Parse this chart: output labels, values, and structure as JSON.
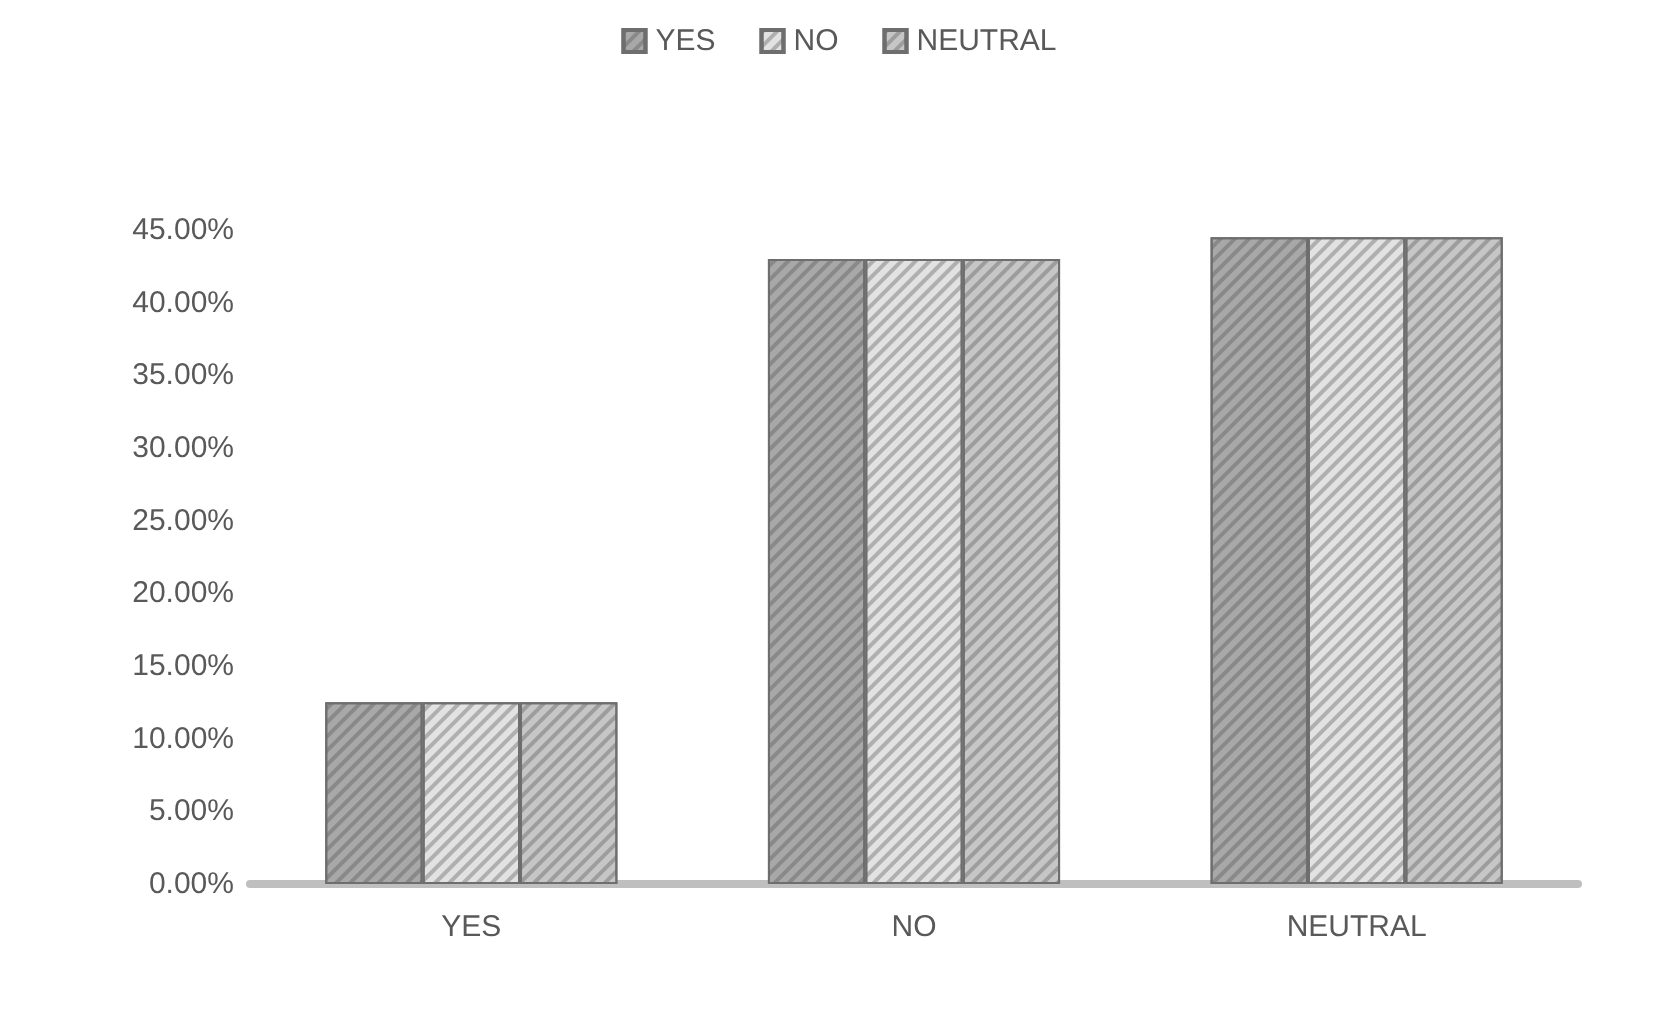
{
  "chart_data": {
    "type": "bar",
    "categories": [
      "YES",
      "NO",
      "NEUTRAL"
    ],
    "series": [
      {
        "name": "YES",
        "color": "#a8a8a8",
        "values": [
          12.5,
          43,
          44.5
        ]
      },
      {
        "name": "NO",
        "color": "#e2e2e2",
        "values": [
          12.5,
          43,
          44.5
        ]
      },
      {
        "name": "NEUTRAL",
        "color": "#c6c6c6",
        "values": [
          12.5,
          43,
          44.5
        ]
      }
    ],
    "ylim": [
      0,
      45
    ],
    "yticks": [
      {
        "value": 0,
        "label": "0.00%"
      },
      {
        "value": 5,
        "label": "5.00%"
      },
      {
        "value": 10,
        "label": "10.00%"
      },
      {
        "value": 15,
        "label": "15.00%"
      },
      {
        "value": 20,
        "label": "20.00%"
      },
      {
        "value": 25,
        "label": "25.00%"
      },
      {
        "value": 30,
        "label": "30.00%"
      },
      {
        "value": 35,
        "label": "35.00%"
      },
      {
        "value": 40,
        "label": "40.00%"
      },
      {
        "value": 45,
        "label": "45.00%"
      }
    ],
    "grid": false,
    "legend": "top"
  }
}
